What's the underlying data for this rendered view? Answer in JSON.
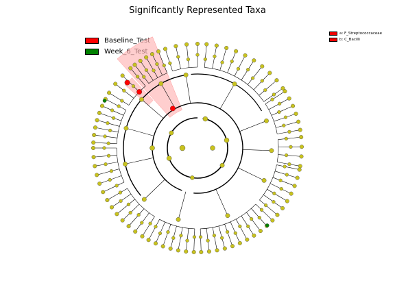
{
  "title": "Significantly Represented Taxa",
  "legend": [
    {
      "label": "Baseline_Test",
      "color": "#ff0000"
    },
    {
      "label": "Week_6_Test",
      "color": "#008000"
    }
  ],
  "clade_keys": [
    {
      "label": "a: F_Streptococcaceae",
      "color": "#ff0000"
    },
    {
      "label": "b: C_Bacilli",
      "color": "#ff0000"
    }
  ],
  "colors": {
    "node_default": "#c8c21e",
    "baseline": "#ff0000",
    "week6": "#008000",
    "highlight": "#ffb3b3"
  }
}
